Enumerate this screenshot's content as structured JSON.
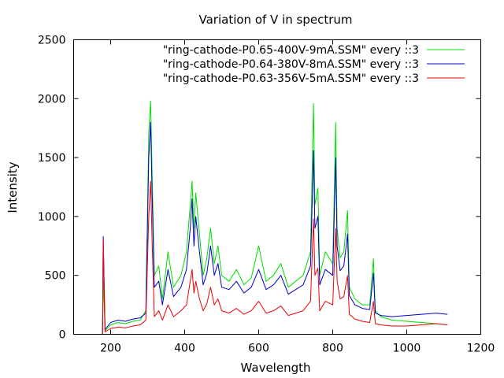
{
  "chart_data": {
    "type": "line",
    "title": "Variation of V in spectrum",
    "xlabel": "Wavelength",
    "ylabel": "Intensity",
    "xlim": [
      100,
      1200
    ],
    "ylim": [
      0,
      2500
    ],
    "xticks": [
      200,
      400,
      600,
      800,
      1000,
      1200
    ],
    "yticks": [
      0,
      500,
      1000,
      1500,
      2000,
      2500
    ],
    "grid": false,
    "legend": "top-right",
    "series": [
      {
        "name": "\"ring-cathode-P0.65-400V-9mA.SSM\" every ::3",
        "color": "#00dd00",
        "x": [
          178,
          180,
          185,
          200,
          220,
          240,
          260,
          280,
          295,
          303,
          308,
          312,
          318,
          330,
          340,
          355,
          370,
          390,
          405,
          415,
          420,
          425,
          430,
          440,
          450,
          460,
          470,
          480,
          490,
          500,
          520,
          540,
          560,
          580,
          600,
          620,
          640,
          660,
          680,
          700,
          720,
          740,
          748,
          752,
          760,
          765,
          780,
          800,
          808,
          812,
          820,
          830,
          840,
          845,
          860,
          880,
          900,
          910,
          915,
          930,
          960,
          1000,
          1040,
          1080,
          1110
        ],
        "y": [
          0,
          450,
          30,
          80,
          100,
          90,
          110,
          120,
          200,
          1700,
          1980,
          1400,
          500,
          580,
          300,
          700,
          400,
          500,
          700,
          1100,
          1300,
          900,
          1200,
          850,
          500,
          650,
          900,
          600,
          750,
          500,
          450,
          550,
          420,
          480,
          750,
          450,
          500,
          600,
          400,
          450,
          500,
          700,
          1960,
          1100,
          1240,
          500,
          700,
          600,
          1800,
          900,
          650,
          700,
          1050,
          400,
          300,
          250,
          250,
          640,
          200,
          150,
          120,
          110,
          100,
          90,
          80
        ]
      },
      {
        "name": "\"ring-cathode-P0.64-380V-8mA.SSM\" every ::3",
        "color": "#0000cc",
        "x": [
          178,
          180,
          185,
          200,
          220,
          240,
          260,
          280,
          295,
          303,
          308,
          312,
          318,
          330,
          340,
          355,
          370,
          390,
          405,
          415,
          420,
          425,
          430,
          440,
          450,
          460,
          470,
          480,
          490,
          500,
          520,
          540,
          560,
          580,
          600,
          620,
          640,
          660,
          680,
          700,
          720,
          740,
          748,
          752,
          760,
          765,
          780,
          800,
          808,
          812,
          820,
          830,
          840,
          845,
          860,
          880,
          900,
          910,
          915,
          930,
          960,
          1000,
          1040,
          1080,
          1110
        ],
        "y": [
          0,
          830,
          40,
          100,
          120,
          110,
          130,
          140,
          180,
          1500,
          1800,
          1200,
          400,
          450,
          250,
          550,
          320,
          400,
          550,
          900,
          1150,
          750,
          1000,
          700,
          420,
          520,
          750,
          500,
          600,
          400,
          380,
          450,
          350,
          400,
          550,
          380,
          420,
          500,
          340,
          380,
          420,
          580,
          1560,
          900,
          1000,
          420,
          550,
          500,
          1500,
          750,
          540,
          580,
          850,
          330,
          250,
          220,
          210,
          520,
          180,
          160,
          150,
          160,
          170,
          180,
          170
        ]
      },
      {
        "name": "\"ring-cathode-P0.63-356V-5mA.SSM\" every ::3",
        "color": "#ee0000",
        "x": [
          178,
          180,
          185,
          200,
          220,
          240,
          260,
          280,
          295,
          303,
          308,
          312,
          318,
          330,
          340,
          355,
          370,
          390,
          405,
          415,
          420,
          425,
          430,
          440,
          450,
          460,
          470,
          480,
          490,
          500,
          520,
          540,
          560,
          580,
          600,
          620,
          640,
          660,
          680,
          700,
          720,
          740,
          748,
          752,
          760,
          765,
          780,
          800,
          808,
          812,
          820,
          830,
          840,
          845,
          860,
          880,
          900,
          910,
          915,
          930,
          960,
          1000,
          1040,
          1080,
          1110
        ],
        "y": [
          0,
          800,
          20,
          50,
          60,
          55,
          70,
          80,
          120,
          1000,
          1300,
          800,
          150,
          200,
          120,
          250,
          150,
          200,
          250,
          450,
          550,
          350,
          450,
          300,
          200,
          260,
          400,
          250,
          300,
          200,
          180,
          220,
          170,
          200,
          280,
          180,
          200,
          240,
          160,
          180,
          200,
          280,
          980,
          500,
          560,
          200,
          280,
          250,
          900,
          450,
          300,
          320,
          500,
          170,
          130,
          110,
          100,
          280,
          90,
          80,
          70,
          70,
          80,
          90,
          80
        ]
      }
    ]
  }
}
